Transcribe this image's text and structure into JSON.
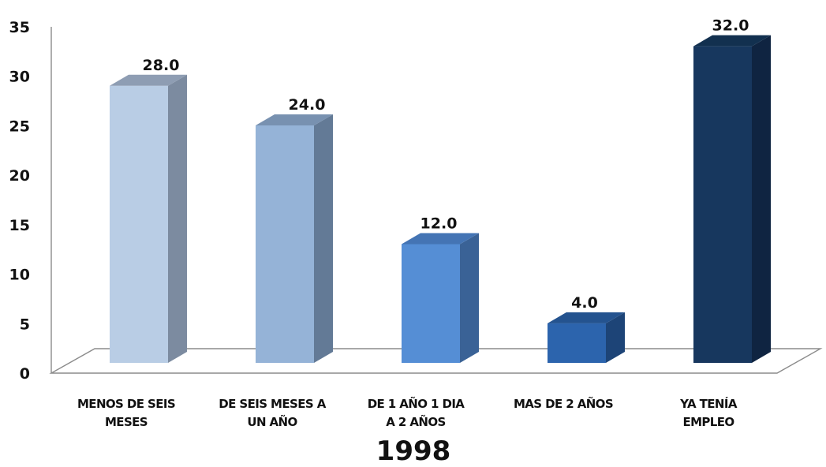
{
  "chart_data": {
    "type": "bar",
    "style": "3d-column",
    "categories": [
      [
        "MENOS DE SEIS",
        "MESES"
      ],
      [
        "DE SEIS MESES A",
        "UN AÑO"
      ],
      [
        "DE 1 AÑO 1 DIA",
        "A 2 AÑOS"
      ],
      [
        "MAS DE 2 AÑOS"
      ],
      [
        "YA TENÍA",
        "EMPLEO"
      ]
    ],
    "values": [
      28.0,
      24.0,
      12.0,
      4.0,
      32.0
    ],
    "value_labels": [
      "28.0",
      "24.0",
      "12.0",
      "4.0",
      "32.0"
    ],
    "title": "1998",
    "xlabel": "",
    "ylabel": "",
    "ylim": [
      0,
      35
    ],
    "yticks": [
      "0",
      "5",
      "10",
      "15",
      "20",
      "25",
      "30",
      "35"
    ],
    "grid": false,
    "legend": "none",
    "colors": {
      "front": [
        "#b9cde5",
        "#95b3d7",
        "#558ed5",
        "#2c64ad",
        "#17375e"
      ],
      "side": [
        "#7c8ba0",
        "#637a96",
        "#3a6296",
        "#1d4477",
        "#0f2441"
      ],
      "top": [
        "#8e9db3",
        "#7891b0",
        "#4474b4",
        "#24538f",
        "#12304f"
      ]
    }
  }
}
